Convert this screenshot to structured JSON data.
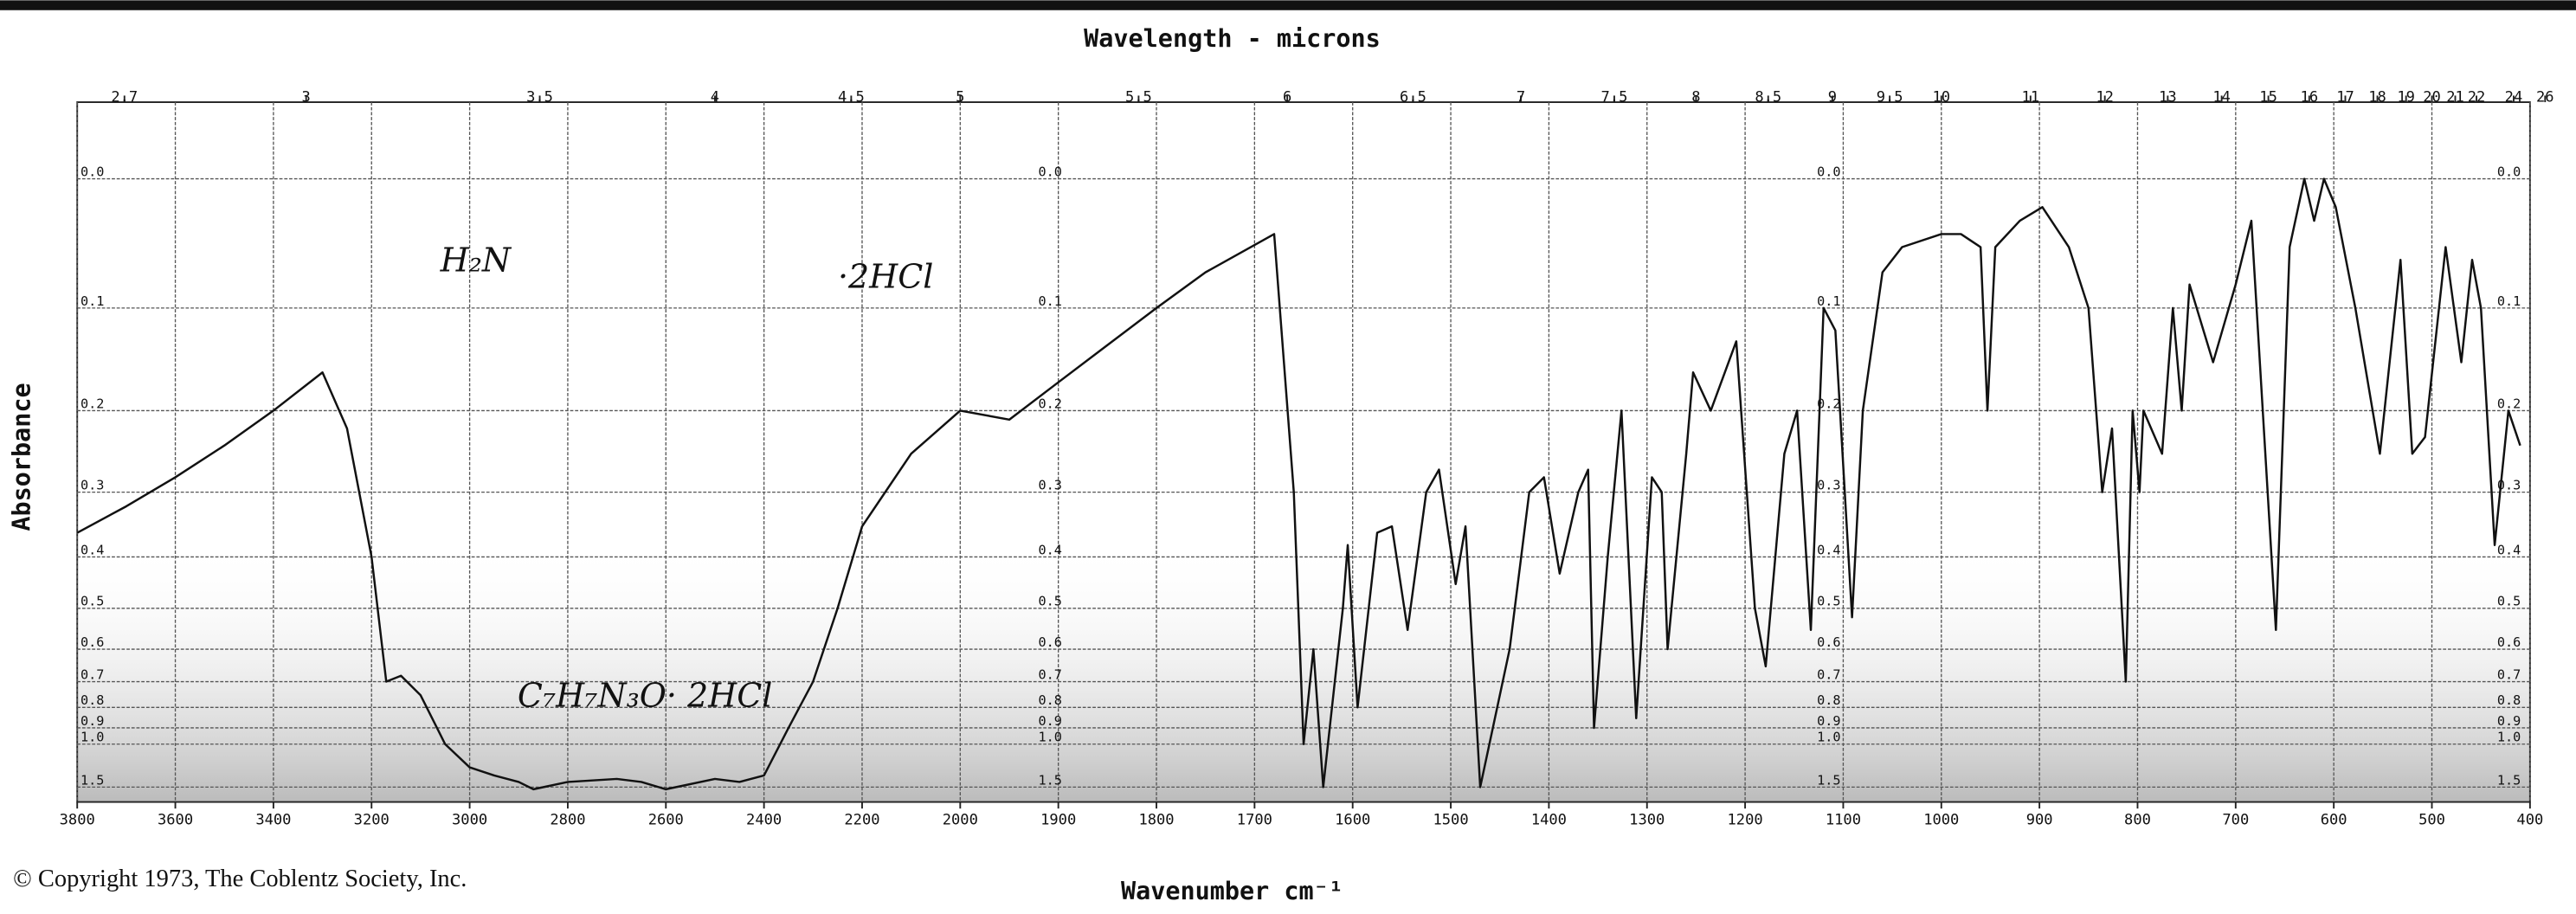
{
  "chart_data": {
    "type": "line",
    "x2_label": "Wavelength - microns",
    "x_label": "Wavenumber cm⁻¹",
    "y_label": "Absorbance",
    "copyright": "© Copyright 1973, The Coblentz Society, Inc.",
    "annotations": [
      "H₂N",
      "·2HCl",
      "C₇H₇N₃O· 2HCl"
    ],
    "xlim": [
      3800,
      400
    ],
    "xscale_change": {
      "at": 2000,
      "ratio": 2
    },
    "xticks": [
      3800,
      3600,
      3400,
      3200,
      3000,
      2800,
      2600,
      2400,
      2200,
      2000,
      1900,
      1800,
      1700,
      1600,
      1500,
      1400,
      1300,
      1200,
      1100,
      1000,
      900,
      800,
      700,
      600,
      500,
      400
    ],
    "x2ticks": [
      2.7,
      3.0,
      3.5,
      4.0,
      4.5,
      5.0,
      5.5,
      6.0,
      6.5,
      7.0,
      7.5,
      8.0,
      8.5,
      9.0,
      9.5,
      10,
      11,
      12,
      13,
      14,
      15,
      16,
      17,
      18,
      19,
      20,
      21,
      22,
      24,
      26
    ],
    "yscale": "absorbance",
    "ylim": [
      -0.05,
      2.1
    ],
    "yticks": [
      {
        "value": 0,
        "label": "0.0"
      },
      0.1,
      0.2,
      0.3,
      0.4,
      0.5,
      0.6,
      0.7,
      0.8,
      0.9,
      {
        "value": 1,
        "label": "1.0"
      },
      1.5
    ],
    "grid": true,
    "series": [
      {
        "color": "#111111",
        "x": [
          3800,
          3700,
          3600,
          3500,
          3400,
          3300,
          3250,
          3200,
          3170,
          3140,
          3100,
          3050,
          3000,
          2950,
          2900,
          2870,
          2800,
          2700,
          2650,
          2600,
          2500,
          2450,
          2400,
          2350,
          2300,
          2250,
          2200,
          2100,
          2000,
          1950,
          1900,
          1800,
          1750,
          1680,
          1660,
          1650,
          1640,
          1630,
          1610,
          1605,
          1595,
          1575,
          1560,
          1544,
          1525,
          1512,
          1495,
          1485,
          1470,
          1440,
          1420,
          1405,
          1389,
          1370,
          1360,
          1354,
          1340,
          1326,
          1311,
          1295,
          1285,
          1279,
          1260,
          1253,
          1235,
          1209,
          1190,
          1179,
          1160,
          1147,
          1133,
          1120,
          1108,
          1091,
          1080,
          1060,
          1040,
          1000,
          980,
          960,
          953,
          945,
          920,
          897,
          870,
          850,
          836,
          826,
          812,
          805,
          798,
          794,
          775,
          764,
          755,
          747,
          723,
          700,
          684,
          659,
          645,
          630,
          620,
          610,
          598,
          578,
          553,
          532,
          520,
          507,
          486,
          470,
          459,
          450,
          436,
          422,
          410
        ],
        "values": [
          0.36,
          0.32,
          0.28,
          0.24,
          0.2,
          0.16,
          0.22,
          0.4,
          0.7,
          0.68,
          0.75,
          1.0,
          1.2,
          1.3,
          1.4,
          1.55,
          1.4,
          1.35,
          1.4,
          1.55,
          1.35,
          1.4,
          1.3,
          0.9,
          0.7,
          0.5,
          0.35,
          0.25,
          0.2,
          0.21,
          0.17,
          0.1,
          0.07,
          0.04,
          0.3,
          1.0,
          0.6,
          1.5,
          0.5,
          0.38,
          0.8,
          0.36,
          0.35,
          0.55,
          0.3,
          0.27,
          0.45,
          0.35,
          1.5,
          0.6,
          0.3,
          0.28,
          0.43,
          0.3,
          0.27,
          0.9,
          0.4,
          0.2,
          0.85,
          0.28,
          0.3,
          0.6,
          0.25,
          0.16,
          0.2,
          0.13,
          0.5,
          0.65,
          0.25,
          0.2,
          0.55,
          0.1,
          0.12,
          0.52,
          0.2,
          0.07,
          0.05,
          0.04,
          0.04,
          0.05,
          0.2,
          0.05,
          0.03,
          0.02,
          0.05,
          0.1,
          0.3,
          0.22,
          0.7,
          0.2,
          0.3,
          0.2,
          0.25,
          0.1,
          0.2,
          0.08,
          0.15,
          0.08,
          0.03,
          0.55,
          0.05,
          0.0,
          0.03,
          0.0,
          0.02,
          0.1,
          0.25,
          0.06,
          0.25,
          0.23,
          0.05,
          0.15,
          0.06,
          0.1,
          0.38,
          0.2,
          0.24
        ]
      }
    ]
  }
}
